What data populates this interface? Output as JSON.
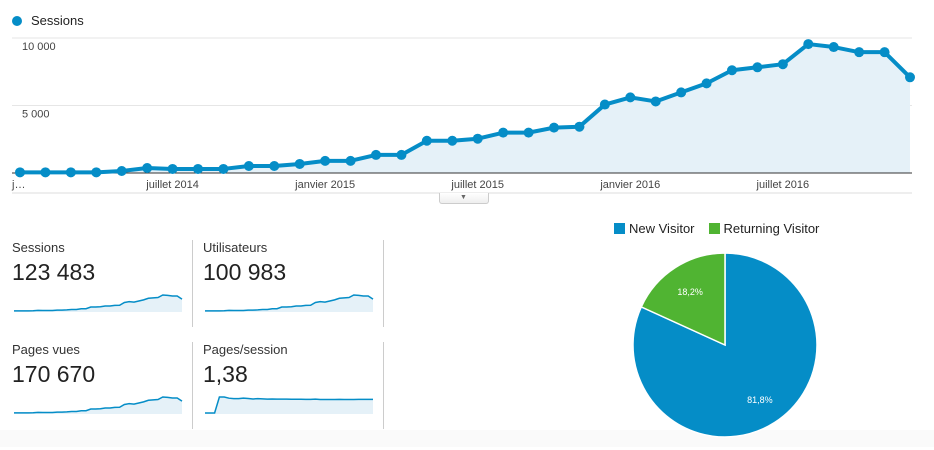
{
  "legend": {
    "label": "Sessions",
    "color": "#058dc7"
  },
  "chart_data": [
    {
      "type": "line",
      "title": "Sessions",
      "ylim": [
        0,
        10000
      ],
      "yticks": [
        {
          "value": 5000,
          "label": "5 000"
        },
        {
          "value": 10000,
          "label": "10 000"
        }
      ],
      "xticks": [
        {
          "index": 0,
          "label": "j…"
        },
        {
          "index": 6,
          "label": "juillet 2014"
        },
        {
          "index": 12,
          "label": "janvier 2015"
        },
        {
          "index": 18,
          "label": "juillet 2015"
        },
        {
          "index": 24,
          "label": "janvier 2016"
        },
        {
          "index": 30,
          "label": "juillet 2016"
        }
      ],
      "series": [
        {
          "name": "Sessions",
          "values": [
            50,
            50,
            50,
            50,
            150,
            370,
            300,
            300,
            300,
            520,
            520,
            670,
            900,
            900,
            1340,
            1340,
            2390,
            2390,
            2540,
            2990,
            2990,
            3360,
            3430,
            5070,
            5600,
            5300,
            5970,
            6640,
            7610,
            7830,
            8060,
            9550,
            9330,
            8950,
            8950,
            7090
          ]
        }
      ]
    },
    {
      "type": "pie",
      "legend": [
        "New Visitor",
        "Returning Visitor"
      ],
      "slices": [
        {
          "name": "New Visitor",
          "value": 81.8,
          "label": "81,8%",
          "color": "#058dc7"
        },
        {
          "name": "Returning Visitor",
          "value": 18.2,
          "label": "18,2%",
          "color": "#50b432"
        }
      ]
    }
  ],
  "metrics": [
    {
      "label": "Sessions",
      "value": "123 483",
      "spark": [
        50,
        50,
        50,
        50,
        150,
        370,
        300,
        300,
        300,
        520,
        520,
        670,
        900,
        900,
        1340,
        1340,
        2390,
        2390,
        2540,
        2990,
        2990,
        3360,
        3430,
        5070,
        5600,
        5300,
        5970,
        6640,
        7610,
        7830,
        8060,
        9550,
        9330,
        8950,
        8950,
        7090
      ]
    },
    {
      "label": "Utilisateurs",
      "value": "100 983",
      "spark": [
        40,
        40,
        40,
        40,
        130,
        320,
        260,
        260,
        260,
        450,
        450,
        580,
        780,
        780,
        1160,
        1160,
        2070,
        2070,
        2200,
        2590,
        2590,
        2910,
        2970,
        4400,
        4860,
        4600,
        5180,
        5760,
        6600,
        6800,
        7000,
        8290,
        8100,
        7770,
        7770,
        6150
      ]
    },
    {
      "label": "Pages vues",
      "value": "170 670",
      "spark": [
        70,
        70,
        70,
        70,
        210,
        510,
        420,
        420,
        420,
        720,
        720,
        930,
        1250,
        1250,
        1850,
        1850,
        3300,
        3300,
        3510,
        4130,
        4130,
        4650,
        4740,
        7010,
        7740,
        7330,
        8250,
        9180,
        10520,
        10820,
        11140,
        13200,
        12900,
        12370,
        12370,
        9800
      ]
    },
    {
      "label": "Pages/session",
      "value": "1,38",
      "spark": [
        0,
        0,
        0,
        1.62,
        1.62,
        1.5,
        1.45,
        1.45,
        1.5,
        1.47,
        1.42,
        1.45,
        1.43,
        1.4,
        1.42,
        1.4,
        1.41,
        1.4,
        1.39,
        1.39,
        1.39,
        1.38,
        1.38,
        1.4,
        1.37,
        1.37,
        1.37,
        1.37,
        1.38,
        1.37,
        1.37,
        1.37,
        1.38,
        1.38,
        1.38,
        1.38
      ]
    }
  ]
}
